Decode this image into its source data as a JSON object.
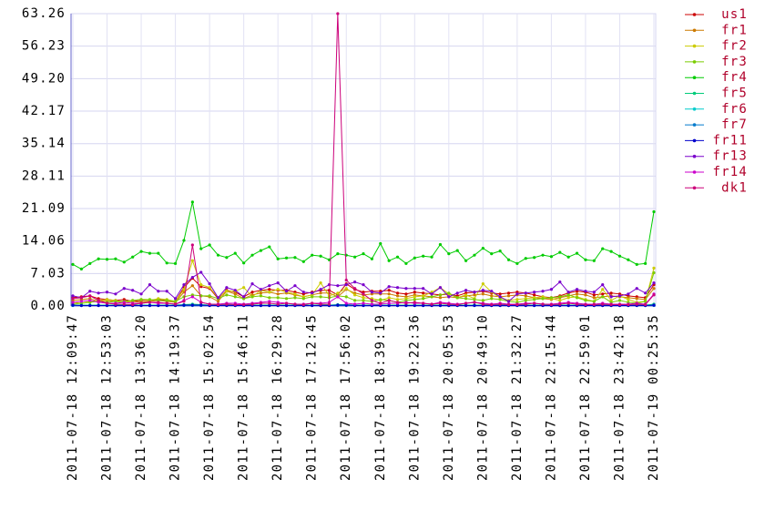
{
  "chart_data": {
    "type": "line",
    "categories": [
      "2011-07-18 12:09:47",
      null,
      null,
      null,
      "2011-07-18 12:53:03",
      null,
      null,
      null,
      "2011-07-18 13:36:20",
      null,
      null,
      null,
      "2011-07-18 14:19:37",
      null,
      null,
      null,
      "2011-07-18 15:02:54",
      null,
      null,
      null,
      "2011-07-18 15:46:11",
      null,
      null,
      null,
      "2011-07-18 16:29:28",
      null,
      null,
      null,
      "2011-07-18 17:12:45",
      null,
      null,
      null,
      "2011-07-18 17:56:02",
      null,
      null,
      null,
      "2011-07-18 18:39:19",
      null,
      null,
      null,
      "2011-07-18 19:22:36",
      null,
      null,
      null,
      "2011-07-18 20:05:53",
      null,
      null,
      null,
      "2011-07-18 20:49:10",
      null,
      null,
      null,
      "2011-07-18 21:32:27",
      null,
      null,
      null,
      "2011-07-18 22:15:44",
      null,
      null,
      null,
      "2011-07-18 22:59:01",
      null,
      null,
      null,
      "2011-07-18 23:42:18",
      null,
      null,
      null,
      "2011-07-19 00:25:35"
    ],
    "ylim": [
      0,
      63.26
    ],
    "yticks": [
      {
        "value": 0,
        "label": "0.00"
      },
      7.03,
      14.06,
      21.09,
      28.11,
      35.14,
      42.17,
      {
        "value": 49.2,
        "label": "49.20"
      },
      56.23,
      63.26
    ],
    "grid": true,
    "legend": "right",
    "series": [
      {
        "name": "us1",
        "color": "#cc0000",
        "values": [
          1.8,
          2.0,
          2.2,
          1.6,
          1.4,
          1.2,
          1.4,
          1.0,
          1.2,
          1.2,
          1.4,
          1.2,
          1.0,
          4.0,
          6.0,
          4.2,
          3.8,
          1.6,
          3.4,
          3.0,
          2.0,
          3.0,
          3.4,
          3.6,
          3.4,
          3.4,
          3.0,
          2.6,
          3.0,
          3.4,
          3.4,
          2.4,
          4.8,
          3.6,
          3.0,
          3.2,
          3.2,
          3.4,
          2.8,
          2.6,
          3.0,
          2.8,
          2.6,
          2.4,
          2.6,
          2.2,
          2.8,
          3.0,
          3.2,
          2.8,
          2.6,
          2.8,
          3.0,
          2.8,
          2.4,
          2.0,
          1.8,
          2.2,
          2.8,
          3.2,
          3.0,
          2.4,
          2.6,
          2.8,
          2.6,
          2.2,
          2.0,
          1.8,
          4.6
        ]
      },
      {
        "name": "fr1",
        "color": "#cc7a00",
        "values": [
          1.2,
          1.4,
          1.6,
          1.0,
          1.2,
          1.0,
          0.8,
          1.0,
          0.8,
          1.0,
          1.2,
          1.0,
          0.8,
          3.0,
          4.4,
          2.2,
          2.0,
          1.0,
          3.2,
          2.6,
          1.6,
          2.4,
          2.8,
          3.0,
          2.6,
          2.8,
          2.4,
          2.0,
          2.4,
          2.8,
          2.8,
          2.0,
          3.6,
          2.8,
          2.4,
          2.6,
          2.6,
          2.6,
          2.2,
          2.0,
          2.4,
          2.2,
          2.0,
          1.8,
          2.0,
          1.8,
          2.2,
          2.4,
          2.6,
          2.2,
          2.0,
          2.2,
          2.4,
          2.2,
          1.8,
          1.6,
          1.4,
          1.8,
          2.2,
          2.6,
          2.4,
          1.8,
          2.0,
          2.2,
          2.0,
          1.8,
          1.6,
          1.4,
          3.8
        ]
      },
      {
        "name": "fr2",
        "color": "#cccc00",
        "values": [
          0.8,
          0.6,
          1.0,
          1.2,
          1.4,
          1.2,
          0.8,
          1.2,
          1.4,
          1.2,
          1.6,
          1.4,
          1.0,
          3.6,
          9.8,
          4.6,
          4.0,
          1.8,
          3.2,
          3.2,
          4.0,
          2.0,
          3.4,
          3.0,
          3.6,
          3.0,
          2.6,
          2.0,
          2.4,
          5.0,
          2.2,
          2.8,
          3.8,
          2.4,
          1.8,
          1.6,
          1.2,
          1.8,
          1.4,
          1.6,
          2.0,
          2.2,
          3.0,
          4.0,
          2.6,
          1.8,
          2.4,
          1.6,
          4.8,
          3.0,
          1.8,
          1.2,
          1.4,
          1.6,
          1.8,
          2.0,
          1.6,
          1.2,
          1.8,
          2.0,
          1.4,
          1.0,
          3.6,
          1.2,
          2.2,
          1.4,
          0.8,
          1.0,
          8.2
        ]
      },
      {
        "name": "fr3",
        "color": "#7acc00",
        "values": [
          0.4,
          0.6,
          0.8,
          1.0,
          0.8,
          1.0,
          1.0,
          1.2,
          1.4,
          1.4,
          1.2,
          1.2,
          1.0,
          2.0,
          2.4,
          2.2,
          2.2,
          1.6,
          2.4,
          2.0,
          1.6,
          2.0,
          2.2,
          1.8,
          1.8,
          1.6,
          1.8,
          1.6,
          2.0,
          2.0,
          1.8,
          2.2,
          2.0,
          1.2,
          1.2,
          1.0,
          1.4,
          1.2,
          0.8,
          1.2,
          1.4,
          1.6,
          2.0,
          2.4,
          2.8,
          1.8,
          1.6,
          1.4,
          1.2,
          1.6,
          1.4,
          1.0,
          0.8,
          1.2,
          1.4,
          1.6,
          1.8,
          2.0,
          2.4,
          1.8,
          1.2,
          1.0,
          2.0,
          0.8,
          1.2,
          0.8,
          0.6,
          1.0,
          7.2
        ]
      },
      {
        "name": "fr4",
        "color": "#00cc00",
        "values": [
          9.0,
          8.0,
          9.2,
          10.2,
          10.1,
          10.2,
          9.5,
          10.6,
          11.8,
          11.4,
          11.4,
          9.3,
          9.2,
          14.2,
          22.5,
          12.4,
          13.2,
          11.0,
          10.5,
          11.4,
          9.3,
          11.0,
          12.0,
          12.8,
          10.2,
          10.4,
          10.5,
          9.6,
          11.0,
          10.8,
          10.0,
          11.3,
          11.0,
          10.6,
          11.3,
          10.2,
          13.5,
          9.8,
          10.6,
          9.2,
          10.4,
          10.8,
          10.6,
          13.3,
          11.3,
          12.0,
          9.8,
          11.0,
          12.5,
          11.3,
          11.9,
          10.0,
          9.2,
          10.3,
          10.5,
          11.0,
          10.7,
          11.6,
          10.6,
          11.4,
          10.0,
          9.8,
          12.4,
          11.8,
          10.8,
          10.0,
          9.0,
          9.2,
          20.4
        ]
      },
      {
        "name": "fr5",
        "color": "#00cc7a",
        "values": [
          0.2,
          0.2,
          0.2,
          0.2,
          0.2,
          0.2,
          0.2,
          0.2,
          0.2,
          0.2,
          0.2,
          0.2,
          0.2,
          0.3,
          0.4,
          0.3,
          0.2,
          0.2,
          0.2,
          0.2,
          0.2,
          0.2,
          0.2,
          0.2,
          0.2,
          0.2,
          0.2,
          0.2,
          0.2,
          0.2,
          0.2,
          0.3,
          0.3,
          0.2,
          0.2,
          0.2,
          0.2,
          0.2,
          0.2,
          0.2,
          0.2,
          0.2,
          0.2,
          0.2,
          0.2,
          0.2,
          0.2,
          0.2,
          0.2,
          0.2,
          0.2,
          0.2,
          0.2,
          0.2,
          0.2,
          0.2,
          0.2,
          0.2,
          0.2,
          0.2,
          0.2,
          0.2,
          0.2,
          0.2,
          0.2,
          0.2,
          0.2,
          0.2,
          0.4
        ]
      },
      {
        "name": "fr6",
        "color": "#00cccc",
        "values": [
          0.1,
          0.1,
          0.1,
          0.1,
          0.1,
          0.1,
          0.1,
          0.1,
          0.1,
          0.1,
          0.1,
          0.1,
          0.1,
          0.1,
          0.2,
          0.1,
          0.1,
          0.1,
          0.1,
          0.1,
          0.1,
          0.1,
          0.1,
          0.1,
          0.1,
          0.1,
          0.1,
          0.1,
          0.1,
          0.1,
          0.1,
          0.2,
          0.1,
          0.1,
          0.1,
          0.1,
          0.1,
          0.1,
          0.1,
          0.1,
          0.1,
          0.1,
          0.1,
          0.1,
          0.1,
          0.1,
          0.1,
          0.1,
          0.1,
          0.1,
          0.1,
          0.1,
          0.1,
          0.1,
          0.1,
          0.1,
          0.1,
          0.1,
          0.1,
          0.1,
          0.1,
          0.1,
          0.1,
          0.1,
          0.1,
          0.1,
          0.1,
          0.1,
          0.2
        ]
      },
      {
        "name": "fr7",
        "color": "#007acc",
        "values": [
          0.1,
          0.1,
          0.1,
          0.1,
          0.1,
          0.1,
          0.1,
          0.1,
          0.1,
          0.1,
          0.1,
          0.1,
          0.1,
          0.1,
          0.1,
          0.1,
          0.1,
          0.1,
          0.1,
          0.1,
          0.1,
          0.1,
          0.1,
          0.1,
          0.1,
          0.1,
          0.1,
          0.1,
          0.1,
          0.1,
          0.1,
          0.1,
          0.1,
          0.1,
          0.1,
          0.1,
          0.1,
          0.1,
          0.1,
          0.1,
          0.1,
          0.1,
          0.1,
          0.1,
          0.1,
          0.1,
          0.1,
          0.1,
          0.1,
          0.1,
          0.1,
          0.1,
          0.1,
          0.1,
          0.1,
          0.1,
          0.1,
          0.1,
          0.1,
          0.1,
          0.1,
          0.1,
          0.1,
          0.1,
          0.1,
          0.1,
          0.1,
          0.1,
          0.1
        ]
      },
      {
        "name": "fr11",
        "color": "#0000cc",
        "values": [
          0.2,
          0.1,
          0.1,
          0.1,
          0.1,
          0.1,
          0.1,
          0.1,
          0.1,
          0.1,
          0.1,
          0.1,
          0.1,
          0.2,
          0.2,
          0.2,
          0.1,
          0.1,
          0.1,
          0.1,
          0.1,
          0.1,
          0.1,
          0.1,
          0.1,
          0.1,
          0.1,
          0.1,
          0.1,
          0.1,
          0.1,
          0.2,
          0.2,
          0.1,
          0.1,
          0.1,
          0.1,
          0.1,
          0.1,
          0.1,
          0.1,
          0.1,
          0.1,
          0.1,
          0.1,
          0.1,
          0.1,
          0.1,
          0.1,
          0.1,
          0.1,
          0.1,
          0.1,
          0.1,
          0.1,
          0.1,
          0.1,
          0.1,
          0.1,
          0.1,
          0.1,
          0.1,
          0.1,
          0.1,
          0.1,
          0.1,
          0.1,
          0.1,
          0.2
        ]
      },
      {
        "name": "fr13",
        "color": "#7a00cc",
        "values": [
          2.2,
          1.8,
          3.2,
          2.8,
          3.0,
          2.6,
          3.8,
          3.4,
          2.6,
          4.6,
          3.2,
          3.2,
          1.6,
          4.6,
          6.2,
          7.3,
          4.8,
          1.8,
          4.0,
          3.4,
          2.0,
          4.8,
          3.6,
          4.4,
          5.0,
          3.2,
          4.4,
          3.0,
          2.8,
          3.6,
          4.6,
          4.4,
          4.6,
          5.2,
          4.6,
          3.0,
          2.8,
          4.2,
          4.0,
          3.8,
          3.8,
          3.8,
          2.6,
          4.0,
          2.0,
          2.8,
          3.4,
          3.0,
          3.4,
          3.2,
          2.0,
          1.0,
          2.6,
          2.8,
          3.0,
          3.2,
          3.6,
          5.2,
          3.0,
          3.6,
          3.2,
          3.0,
          4.6,
          2.0,
          2.2,
          2.6,
          3.8,
          2.8,
          5.0
        ]
      },
      {
        "name": "fr14",
        "color": "#cc00cc",
        "values": [
          0.8,
          1.0,
          1.2,
          0.8,
          0.6,
          0.6,
          0.8,
          0.6,
          0.6,
          0.8,
          0.6,
          0.6,
          0.4,
          1.2,
          2.0,
          0.8,
          0.4,
          0.4,
          0.6,
          0.6,
          0.4,
          0.6,
          0.8,
          1.0,
          0.8,
          0.6,
          0.4,
          0.4,
          0.6,
          0.6,
          0.8,
          2.0,
          0.6,
          0.4,
          0.6,
          0.4,
          0.4,
          0.6,
          0.6,
          0.8,
          0.6,
          0.6,
          0.4,
          0.8,
          0.6,
          0.4,
          0.6,
          0.8,
          0.6,
          0.4,
          0.6,
          0.4,
          0.4,
          0.6,
          0.6,
          0.4,
          0.4,
          0.6,
          0.8,
          0.6,
          0.4,
          0.4,
          0.6,
          0.4,
          0.4,
          0.4,
          0.6,
          0.4,
          2.6
        ]
      },
      {
        "name": "dk1",
        "color": "#cc007a",
        "values": [
          1.6,
          1.8,
          2.2,
          1.2,
          0.6,
          0.4,
          0.4,
          0.3,
          0.6,
          0.8,
          0.8,
          0.6,
          0.4,
          1.0,
          13.2,
          0.8,
          0.4,
          0.3,
          0.4,
          0.3,
          0.3,
          0.4,
          0.6,
          0.6,
          0.4,
          0.6,
          0.4,
          0.3,
          0.6,
          0.4,
          0.4,
          63.26,
          5.6,
          3.8,
          2.6,
          1.2,
          0.6,
          1.2,
          0.8,
          0.6,
          0.8,
          0.6,
          0.4,
          0.6,
          0.4,
          0.3,
          0.6,
          0.8,
          0.4,
          0.3,
          0.4,
          0.3,
          0.3,
          0.4,
          0.6,
          0.4,
          0.3,
          0.4,
          0.6,
          0.4,
          0.3,
          0.3,
          0.4,
          0.3,
          0.3,
          0.3,
          0.4,
          0.3,
          2.4
        ]
      }
    ]
  }
}
